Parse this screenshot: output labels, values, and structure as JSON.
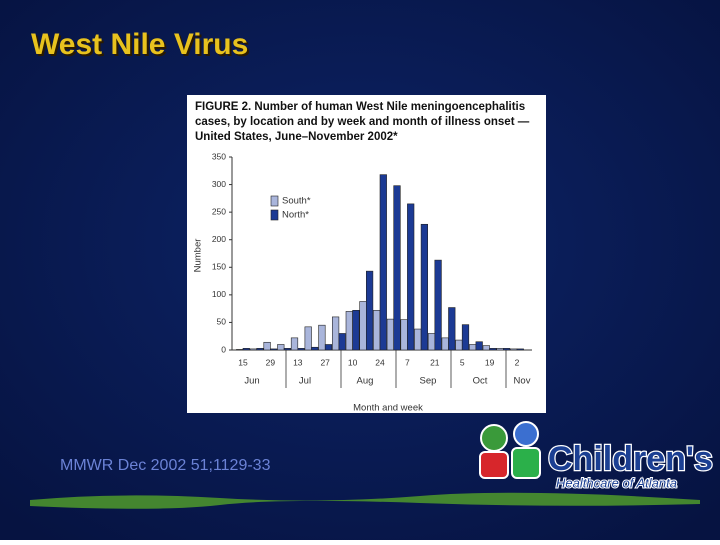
{
  "slide": {
    "title": "West Nile Virus",
    "footer": "MMWR Dec 2002 51;1129-33",
    "logo_name": "Children's",
    "logo_sub": "Healthcare of Atlanta"
  },
  "chart_data": {
    "type": "bar",
    "title_lines": [
      "FIGURE 2. Number of human West Nile meningoencephalitis",
      "cases, by location and by week and month of illness onset —",
      "United States, June–November 2002*"
    ],
    "y_label": "Number",
    "x_label": "Month and week",
    "categories": [
      "15",
      null,
      "29",
      null,
      "13",
      null,
      "27",
      null,
      "10",
      null,
      "24",
      null,
      "7",
      null,
      "21",
      null,
      "5",
      null,
      "19",
      null,
      "2"
    ],
    "months": [
      "Jun",
      "Jul",
      "Aug",
      "Sep",
      "Oct",
      "Nov"
    ],
    "series": [
      {
        "name": "South*",
        "color": "#a9b5db",
        "values": [
          1,
          2,
          14,
          10,
          22,
          42,
          45,
          60,
          70,
          88,
          72,
          56,
          55,
          38,
          30,
          22,
          18,
          10,
          8,
          3,
          2
        ]
      },
      {
        "name": "North*",
        "color": "#1c3a94",
        "values": [
          3,
          3,
          2,
          3,
          3,
          5,
          10,
          30,
          72,
          143,
          318,
          298,
          265,
          228,
          163,
          77,
          46,
          15,
          3,
          3,
          2
        ]
      }
    ],
    "ylim": [
      0,
      350
    ],
    "yticks": [
      0,
      50,
      100,
      150,
      200,
      250,
      300,
      350
    ],
    "grid": false,
    "legend": "upper left"
  }
}
